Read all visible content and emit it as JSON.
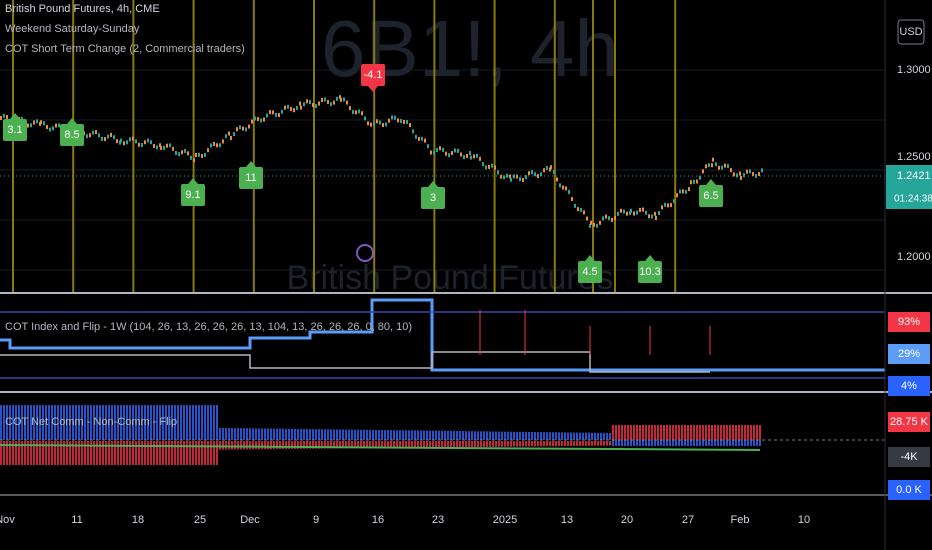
{
  "header": {
    "title": "British Pound Futures, 4h, CME",
    "indicators": [
      "Weekend Saturday-Sunday",
      "COT Short Term Change (2, Commercial traders)"
    ]
  },
  "watermark": {
    "symbol": "6B1!, 4h",
    "name": "British Pound Futures"
  },
  "price_axis": {
    "currency": "USD",
    "labels": [
      "1.3000",
      "1.2500",
      "1.2000"
    ],
    "last_price": "1.2421",
    "countdown": "01:24:38"
  },
  "change_labels": [
    {
      "text": "3.1",
      "color": "#4caf50"
    },
    {
      "text": "8.5",
      "color": "#4caf50"
    },
    {
      "text": "-4.1",
      "color": "#f23645"
    },
    {
      "text": "9.1",
      "color": "#4caf50"
    },
    {
      "text": "11",
      "color": "#4caf50"
    },
    {
      "text": "3",
      "color": "#4caf50"
    },
    {
      "text": "4.5",
      "color": "#4caf50"
    },
    {
      "text": "10.3",
      "color": "#4caf50"
    },
    {
      "text": "6.5",
      "color": "#4caf50"
    }
  ],
  "panes": [
    {
      "title": "COT Index and Flip - 1W (104, 26, 13, 26, 26, 26, 13, 104, 13, 26, 26, 26, 0, 80, 10)",
      "labels": [
        {
          "text": "93%",
          "color": "#f23645"
        },
        {
          "text": "29%",
          "color": "#5b9cf6"
        },
        {
          "text": "4%",
          "color": "#2962ff"
        }
      ]
    },
    {
      "title": "COT Net Comm - Non-Comm - Flip",
      "labels": [
        {
          "text": "28.75 K",
          "color": "#f23645"
        },
        {
          "text": "-4K",
          "color": "#363a45"
        },
        {
          "text": "0.0 K",
          "color": "#2962ff"
        }
      ]
    }
  ],
  "time_axis": [
    "Nov",
    "11",
    "18",
    "25",
    "Dec",
    "9",
    "16",
    "23",
    "2025",
    "13",
    "20",
    "27",
    "Feb",
    "10"
  ]
}
